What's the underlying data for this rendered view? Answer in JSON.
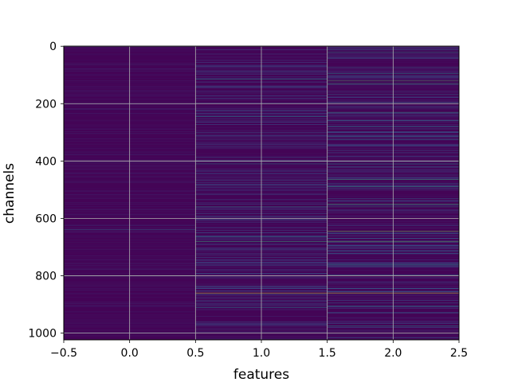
{
  "chart_data": {
    "type": "heatmap",
    "title": "",
    "xlabel": "features",
    "ylabel": "channels",
    "columns": [
      0,
      1,
      2
    ],
    "rows": 1024,
    "xlim": [
      -0.5,
      2.5
    ],
    "ylim": [
      1023.5,
      -0.5
    ],
    "y_inverted": true,
    "x_ticks": [
      "−0.5",
      "0.0",
      "0.5",
      "1.0",
      "1.5",
      "2.0",
      "2.5"
    ],
    "x_tick_values": [
      -0.5,
      0.0,
      0.5,
      1.0,
      1.5,
      2.0,
      2.5
    ],
    "y_ticks": [
      "0",
      "200",
      "400",
      "600",
      "800",
      "1000"
    ],
    "y_tick_values": [
      0,
      200,
      400,
      600,
      800,
      1000
    ],
    "grid": true,
    "colormap": "viridis",
    "column_noise_level": [
      0.06,
      0.16,
      0.2
    ],
    "bright_rows": [
      {
        "column": 0,
        "row": 640,
        "value": 0.35
      },
      {
        "column": 0,
        "row": 800,
        "value": 0.45
      },
      {
        "column": 1,
        "row": 115,
        "value": 0.5
      },
      {
        "column": 1,
        "row": 245,
        "value": 0.45
      },
      {
        "column": 1,
        "row": 410,
        "value": 0.45
      },
      {
        "column": 1,
        "row": 560,
        "value": 0.55
      },
      {
        "column": 1,
        "row": 665,
        "value": 0.5
      },
      {
        "column": 1,
        "row": 680,
        "value": 0.6
      },
      {
        "column": 1,
        "row": 860,
        "value": 0.95
      },
      {
        "column": 1,
        "row": 910,
        "value": 0.45
      },
      {
        "column": 2,
        "row": 20,
        "value": 0.5
      },
      {
        "column": 2,
        "row": 95,
        "value": 0.5
      },
      {
        "column": 2,
        "row": 120,
        "value": 0.75
      },
      {
        "column": 2,
        "row": 130,
        "value": 0.6
      },
      {
        "column": 2,
        "row": 200,
        "value": 0.5
      },
      {
        "column": 2,
        "row": 230,
        "value": 0.6
      },
      {
        "column": 2,
        "row": 280,
        "value": 0.45
      },
      {
        "column": 2,
        "row": 410,
        "value": 0.5
      },
      {
        "column": 2,
        "row": 465,
        "value": 0.6
      },
      {
        "column": 2,
        "row": 490,
        "value": 0.55
      },
      {
        "column": 2,
        "row": 550,
        "value": 0.65
      },
      {
        "column": 2,
        "row": 560,
        "value": 0.55
      },
      {
        "column": 2,
        "row": 645,
        "value": 0.8
      },
      {
        "column": 2,
        "row": 680,
        "value": 0.7
      },
      {
        "column": 2,
        "row": 760,
        "value": 0.5
      },
      {
        "column": 2,
        "row": 860,
        "value": 0.95
      },
      {
        "column": 2,
        "row": 905,
        "value": 0.5
      },
      {
        "column": 2,
        "row": 975,
        "value": 0.5
      },
      {
        "column": 2,
        "row": 1000,
        "value": 0.45
      }
    ]
  }
}
